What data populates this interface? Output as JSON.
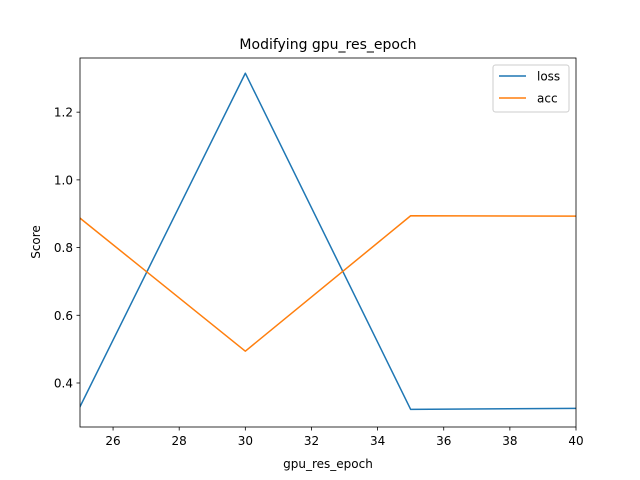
{
  "chart_data": {
    "type": "line",
    "title": "Modifying gpu_res_epoch",
    "xlabel": "gpu_res_epoch",
    "ylabel": "Score",
    "x": [
      25,
      30,
      35,
      40
    ],
    "series": [
      {
        "name": "loss",
        "values": [
          0.33,
          1.315,
          0.322,
          0.325
        ],
        "color": "#1f77b4"
      },
      {
        "name": "acc",
        "values": [
          0.887,
          0.494,
          0.894,
          0.893
        ],
        "color": "#ff7f0e"
      }
    ],
    "xlim": [
      25,
      40
    ],
    "ylim": [
      0.27,
      1.36
    ],
    "xticks": [
      26,
      28,
      30,
      32,
      34,
      36,
      38,
      40
    ],
    "yticks": [
      0.4,
      0.6,
      0.8,
      1.0,
      1.2
    ],
    "ytick_labels": [
      "0.4",
      "0.6",
      "0.8",
      "1.0",
      "1.2"
    ],
    "grid": false,
    "legend_position": "top-right"
  }
}
